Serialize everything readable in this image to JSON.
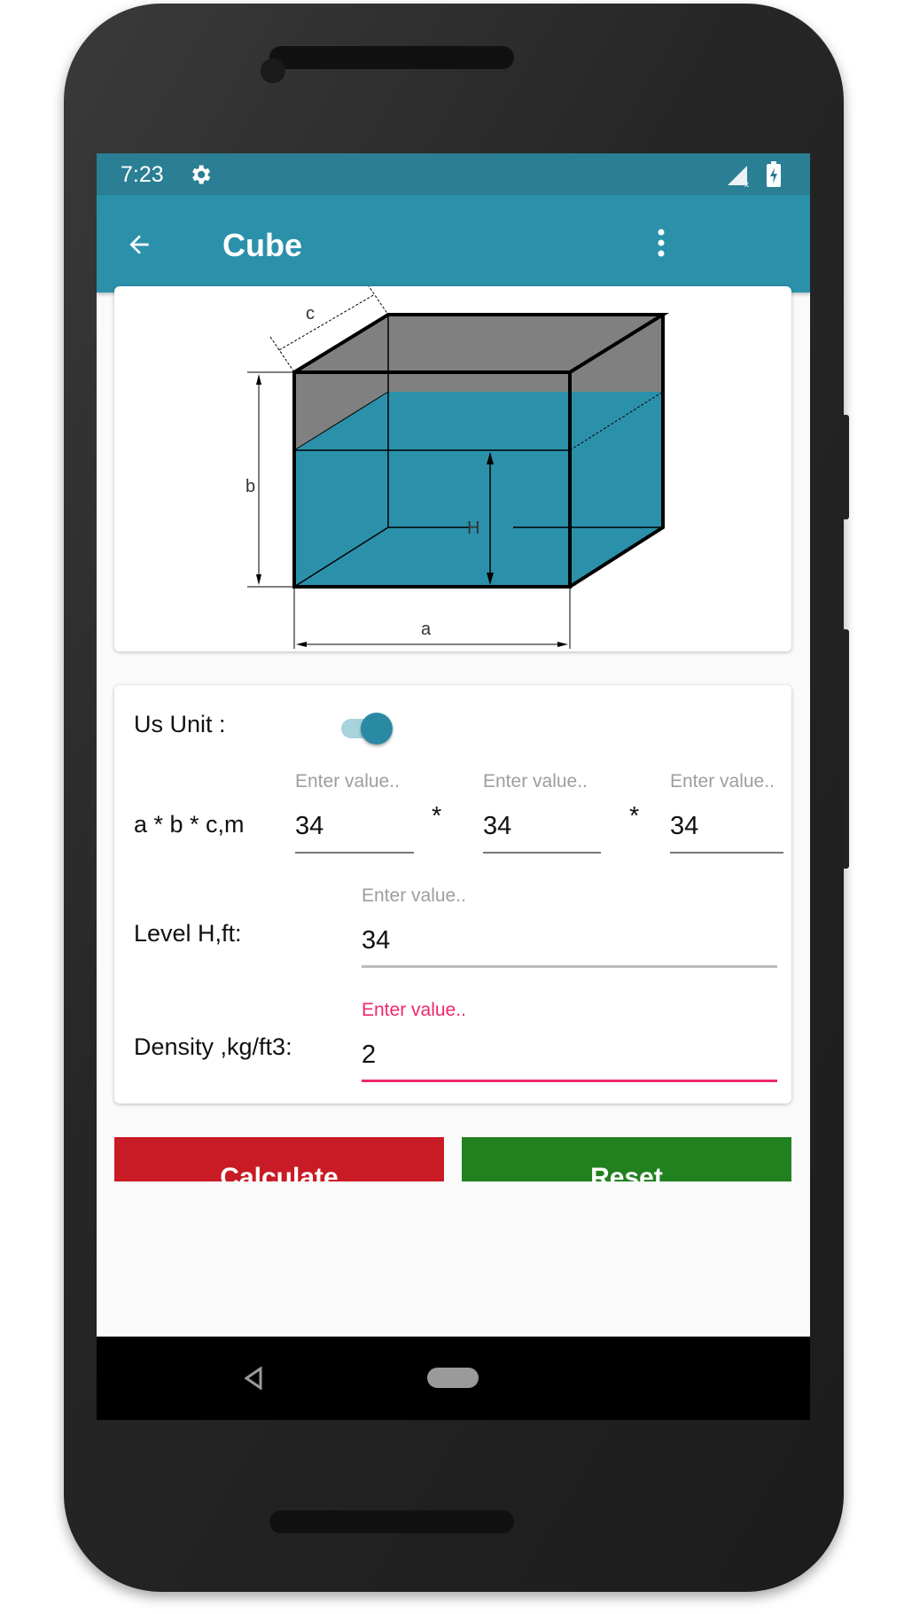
{
  "status_bar": {
    "time": "7:23",
    "icons": [
      "gear-icon",
      "signal-no-data-icon",
      "battery-charging-icon"
    ]
  },
  "app_bar": {
    "title": "Cube",
    "back_icon": "arrow-left-icon",
    "menu_icon": "more-vert-icon"
  },
  "diagram": {
    "labels": {
      "a": "a",
      "b": "b",
      "c": "c",
      "H": "H"
    },
    "water_color": "#2b91aa",
    "air_color": "#808080"
  },
  "form": {
    "us_unit": {
      "label": "Us Unit :",
      "enabled": true
    },
    "dimensions": {
      "label": "a * b * c,m",
      "separator": "*",
      "fields": [
        {
          "hint": "Enter value..",
          "value": "34"
        },
        {
          "hint": "Enter value..",
          "value": "34"
        },
        {
          "hint": "Enter value..",
          "value": "34"
        }
      ]
    },
    "level": {
      "label": "Level H,ft:",
      "hint": "Enter value..",
      "value": "34"
    },
    "density": {
      "label": "Density ,kg/ft3:",
      "hint": "Enter value..",
      "value": "2",
      "focused_color": "#f0286e"
    }
  },
  "buttons": {
    "calculate": "Calculate",
    "reset": "Reset",
    "calculate_color": "#c91b25",
    "reset_color": "#21811f"
  },
  "nav_bar": {
    "icons": [
      "back-triangle-icon",
      "home-pill-icon"
    ]
  }
}
